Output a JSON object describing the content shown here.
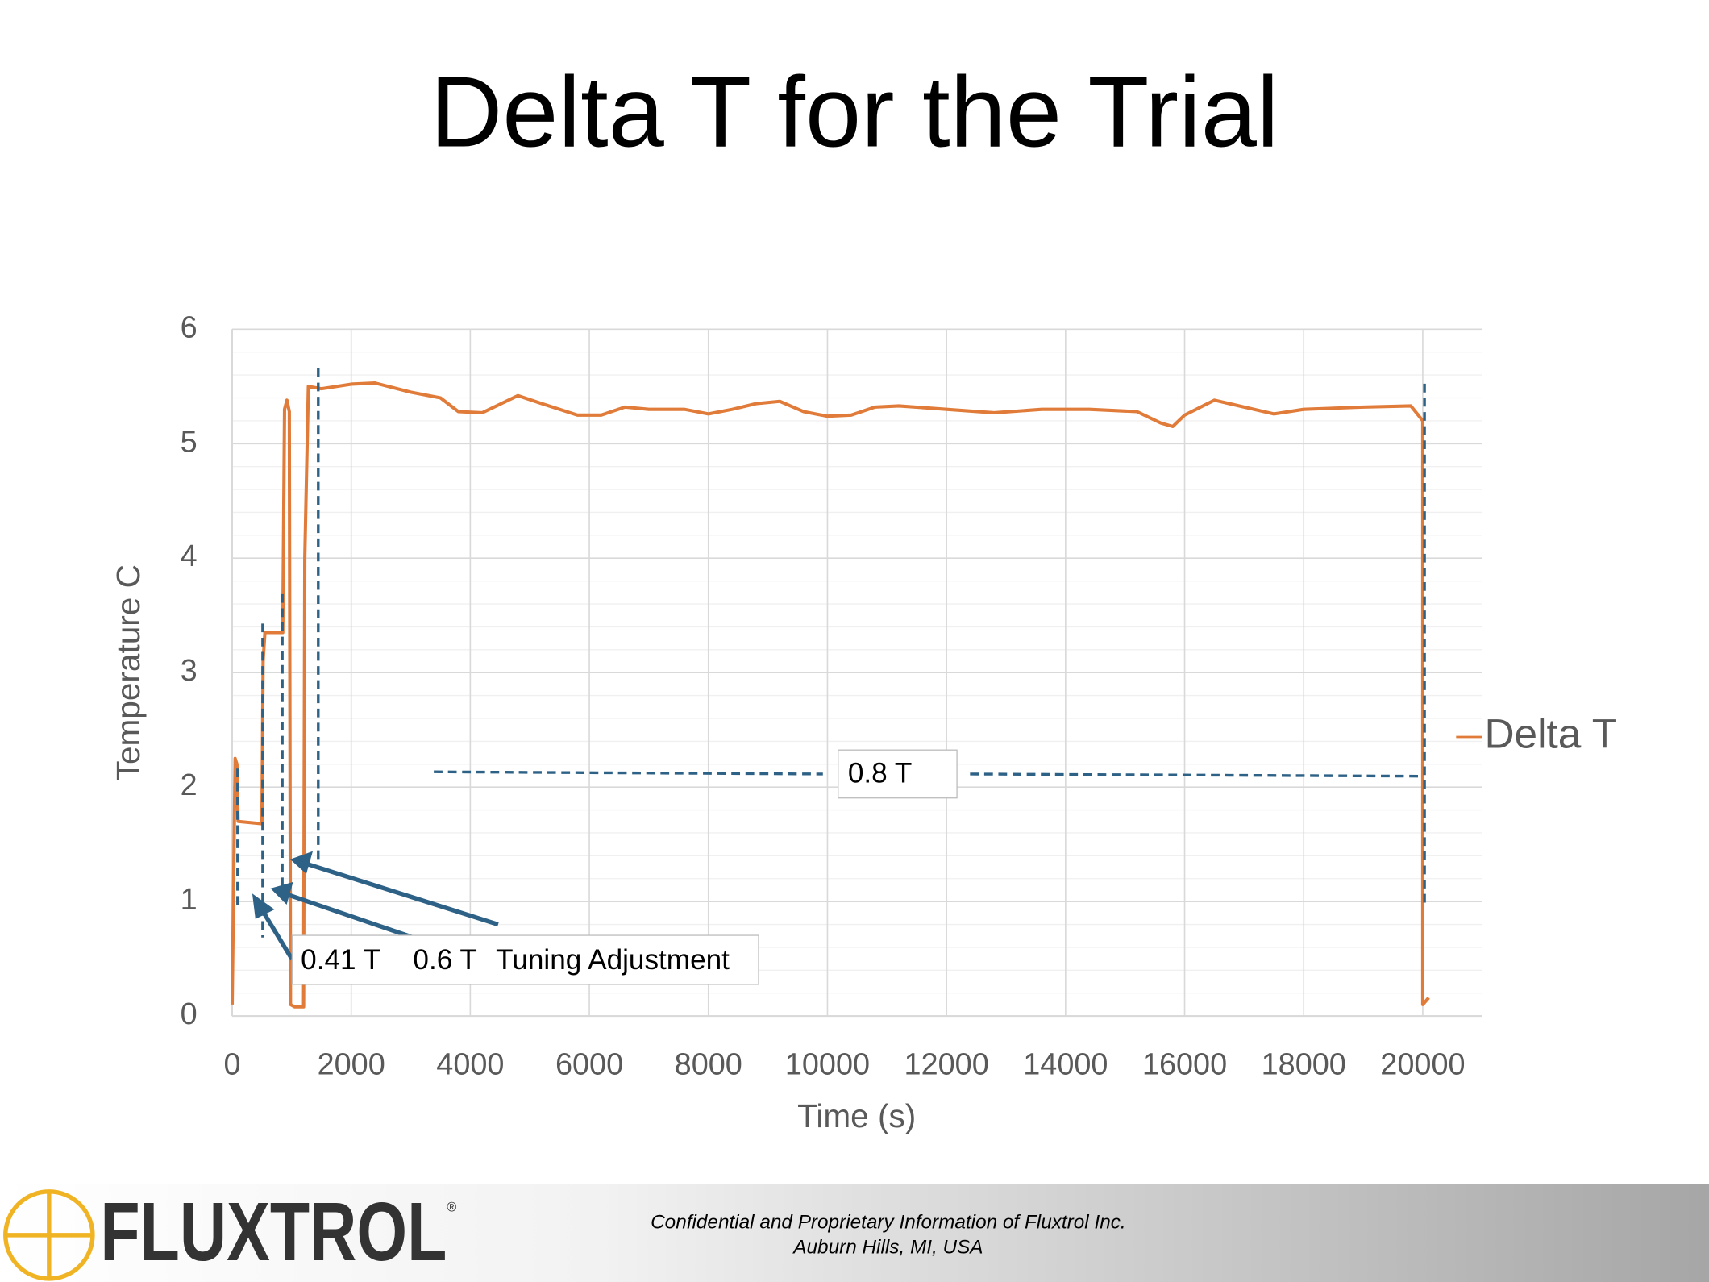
{
  "chart_data": {
    "type": "line",
    "title": "Delta T for the Trial",
    "x_label": "Time (s)",
    "y_label": "Temperature C",
    "x": [
      0,
      50,
      80,
      100,
      500,
      520,
      550,
      850,
      880,
      920,
      960,
      980,
      1050,
      1200,
      1220,
      1280,
      1500,
      2000,
      2400,
      3000,
      3500,
      3800,
      4200,
      4800,
      5200,
      5800,
      6200,
      6600,
      7000,
      7600,
      8000,
      8400,
      8800,
      9200,
      9600,
      10000,
      10400,
      10800,
      11200,
      12000,
      12800,
      13600,
      14400,
      15200,
      15600,
      15800,
      16000,
      16500,
      17000,
      17500,
      18000,
      19000,
      19800,
      20000,
      20000,
      20100
    ],
    "series": [
      {
        "name": "Delta T",
        "color": "#e07b39",
        "values": [
          0.1,
          2.25,
          2.2,
          1.7,
          1.68,
          3.1,
          3.35,
          3.35,
          5.3,
          5.38,
          5.28,
          0.1,
          0.08,
          0.08,
          4.0,
          5.5,
          5.48,
          5.52,
          5.53,
          5.45,
          5.4,
          5.28,
          5.27,
          5.42,
          5.35,
          5.25,
          5.25,
          5.32,
          5.3,
          5.3,
          5.26,
          5.3,
          5.35,
          5.37,
          5.28,
          5.24,
          5.25,
          5.32,
          5.33,
          5.3,
          5.27,
          5.3,
          5.3,
          5.28,
          5.18,
          5.15,
          5.25,
          5.38,
          5.32,
          5.26,
          5.3,
          5.32,
          5.33,
          5.2,
          0.1,
          0.16
        ]
      }
    ],
    "xlim": [
      0,
      21000
    ],
    "ylim": [
      0,
      6
    ],
    "xticks": [
      0,
      2000,
      4000,
      6000,
      8000,
      10000,
      12000,
      14000,
      16000,
      18000,
      20000
    ],
    "yticks": [
      0,
      1,
      2,
      3,
      4,
      5,
      6
    ],
    "grid": true,
    "legend": "right",
    "annotations": [
      "0.41 T",
      "0.6 T",
      "Tuning Adjustment",
      "0.8 T"
    ]
  },
  "footer": {
    "logo": "FLUXTROL",
    "mark": "®",
    "lines": [
      "Confidential and Proprietary Information of Fluxtrol Inc.",
      "Auburn Hills, MI, USA"
    ]
  }
}
